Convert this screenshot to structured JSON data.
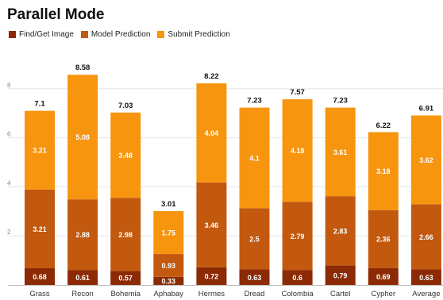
{
  "chart_data": {
    "type": "bar",
    "stacked": true,
    "title": "Parallel Mode",
    "xlabel": "",
    "ylabel": "",
    "legend_position": "top-left",
    "ylim": [
      0,
      9
    ],
    "yticks": [
      2,
      4,
      6,
      8
    ],
    "grid": true,
    "categories": [
      "Grass",
      "Recon",
      "Bohemia",
      "Aphabay",
      "Hermes",
      "Dread",
      "Colombia",
      "Cartel",
      "Cypher",
      "Average"
    ],
    "series": [
      {
        "name": "Find/Get Image",
        "color": "#8b2a04",
        "values": [
          0.68,
          0.61,
          0.57,
          0.33,
          0.72,
          0.63,
          0.6,
          0.79,
          0.69,
          0.63
        ]
      },
      {
        "name": "Model Prediction",
        "color": "#c2590e",
        "values": [
          3.21,
          2.88,
          2.98,
          0.93,
          3.46,
          2.5,
          2.79,
          2.83,
          2.36,
          2.66
        ]
      },
      {
        "name": "Submit Prediction",
        "color": "#f7950f",
        "values": [
          3.21,
          5.08,
          3.48,
          1.75,
          4.04,
          4.1,
          4.18,
          3.61,
          3.18,
          3.62
        ]
      }
    ],
    "totals": [
      7.1,
      8.58,
      7.03,
      3.01,
      8.22,
      7.23,
      7.57,
      7.23,
      6.22,
      6.91
    ]
  }
}
